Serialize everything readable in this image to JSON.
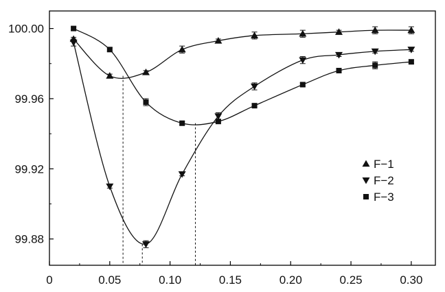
{
  "chart_data": {
    "type": "line",
    "title": "",
    "xlabel": "",
    "ylabel": "",
    "xlim": [
      0,
      0.32
    ],
    "ylim": [
      99.865,
      100.01
    ],
    "x_ticks": [
      "0",
      "0.05",
      "0.10",
      "0.15",
      "0.20",
      "0.25",
      "0.30"
    ],
    "x_tick_values": [
      0,
      0.05,
      0.1,
      0.15,
      0.2,
      0.25,
      0.3
    ],
    "y_ticks": [
      "99.88",
      "99.92",
      "99.96",
      "100.00"
    ],
    "y_tick_values": [
      99.88,
      99.92,
      99.96,
      100.0
    ],
    "grid": false,
    "legend_position": "right",
    "series": [
      {
        "name": "F−1",
        "marker": "triangle-up",
        "x": [
          0.02,
          0.05,
          0.08,
          0.11,
          0.14,
          0.17,
          0.21,
          0.24,
          0.27,
          0.3
        ],
        "y": [
          99.994,
          99.973,
          99.975,
          99.988,
          99.993,
          99.996,
          99.997,
          99.998,
          99.999,
          99.999
        ],
        "err": [
          0.001,
          0.001,
          0.001,
          0.002,
          0.001,
          0.002,
          0.002,
          0.001,
          0.002,
          0.002
        ]
      },
      {
        "name": "F−2",
        "marker": "triangle-down",
        "x": [
          0.02,
          0.05,
          0.08,
          0.11,
          0.14,
          0.17,
          0.21,
          0.24,
          0.27,
          0.3
        ],
        "y": [
          99.992,
          99.91,
          99.877,
          99.917,
          99.95,
          99.967,
          99.982,
          99.985,
          99.987,
          99.988
        ],
        "err": [
          0.002,
          0.001,
          0.002,
          0.001,
          0.002,
          0.002,
          0.002,
          0.001,
          0.001,
          0.001
        ]
      },
      {
        "name": "F−3",
        "marker": "square",
        "x": [
          0.02,
          0.05,
          0.08,
          0.11,
          0.14,
          0.17,
          0.21,
          0.24,
          0.27,
          0.3
        ],
        "y": [
          100.0,
          99.988,
          99.958,
          99.946,
          99.947,
          99.956,
          99.968,
          99.976,
          99.979,
          99.981
        ],
        "err": [
          0.001,
          0.001,
          0.002,
          0.001,
          0.001,
          0.001,
          0.001,
          0.001,
          0.002,
          0.001
        ]
      }
    ],
    "minima_dropline_x": [
      0.061,
      0.077,
      0.121
    ]
  }
}
